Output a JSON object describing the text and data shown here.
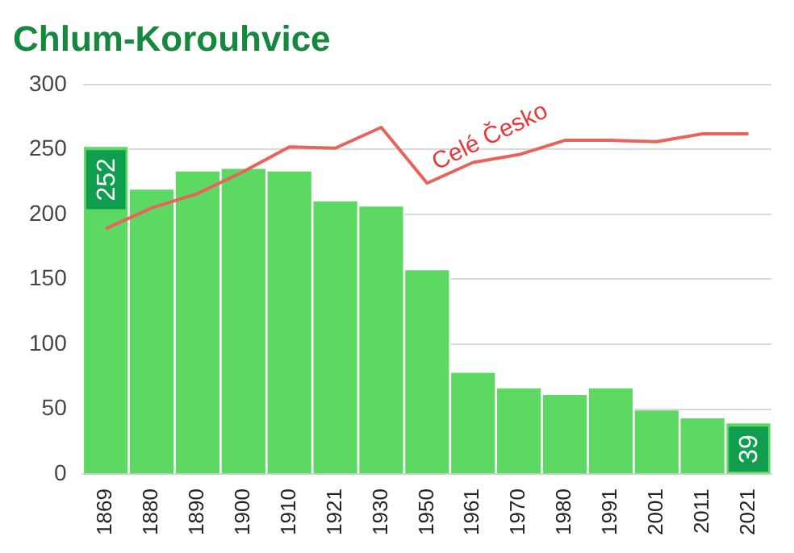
{
  "chart_data": {
    "type": "bar",
    "title": "Chlum-Korouhvice",
    "categories": [
      "1869",
      "1880",
      "1890",
      "1900",
      "1910",
      "1921",
      "1930",
      "1950",
      "1961",
      "1970",
      "1980",
      "1991",
      "2001",
      "2011",
      "2021"
    ],
    "series": [
      {
        "color": "#5dd963",
        "values": [
          252,
          219,
          233,
          235,
          233,
          210,
          206,
          157,
          78,
          66,
          61,
          66,
          49,
          43,
          39
        ],
        "value_labels": [
          "252",
          null,
          null,
          null,
          null,
          null,
          null,
          null,
          null,
          null,
          null,
          null,
          null,
          null,
          "39"
        ]
      },
      {
        "type": "line",
        "name": "Celé Česko",
        "color": "#e8645a",
        "values": [
          189,
          205,
          216,
          233,
          252,
          251,
          267,
          224,
          240,
          246,
          257,
          257,
          256,
          262,
          262
        ]
      }
    ],
    "ylim": [
      0,
      300
    ],
    "yticks": [
      0,
      50,
      100,
      150,
      200,
      250,
      300
    ],
    "grid": "y",
    "legend": false,
    "marker": "none",
    "line_style": "solid"
  }
}
